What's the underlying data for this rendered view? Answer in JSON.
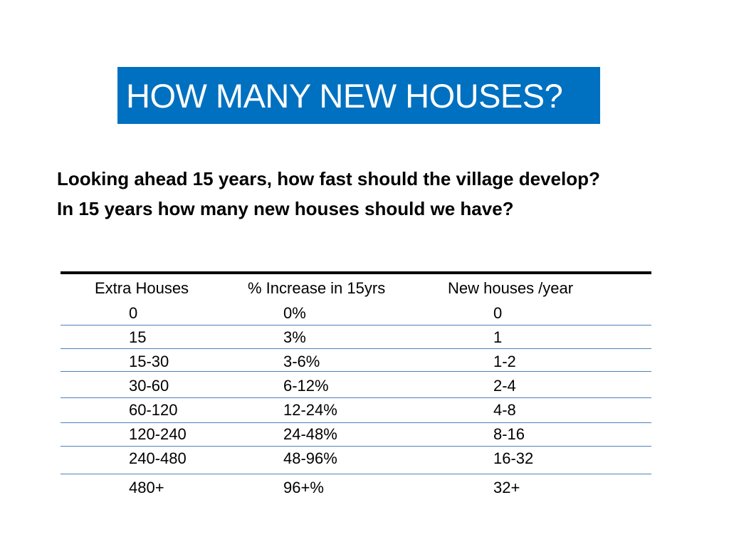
{
  "slide": {
    "title": "HOW MANY NEW HOUSES?",
    "intro_line_1": "Looking ahead 15 years, how fast should the village develop?",
    "intro_line_2": "In 15 years how many new houses should we have?"
  },
  "table": {
    "headers": [
      "Extra Houses",
      "% Increase in 15yrs",
      "New houses /year"
    ],
    "rows": [
      [
        "0",
        "0%",
        "0"
      ],
      [
        "15",
        "3%",
        "1"
      ],
      [
        "15-30",
        "3-6%",
        "1-2"
      ],
      [
        "30-60",
        "6-12%",
        "2-4"
      ],
      [
        "60-120",
        "12-24%",
        "4-8"
      ],
      [
        "120-240",
        "24-48%",
        "8-16"
      ],
      [
        "240-480",
        "48-96%",
        "16-32"
      ],
      [
        "480+",
        "96+%",
        "32+"
      ]
    ]
  },
  "colors": {
    "title_background": "#0070c0",
    "title_text": "#ffffff",
    "row_rule": "#4f81bd"
  }
}
